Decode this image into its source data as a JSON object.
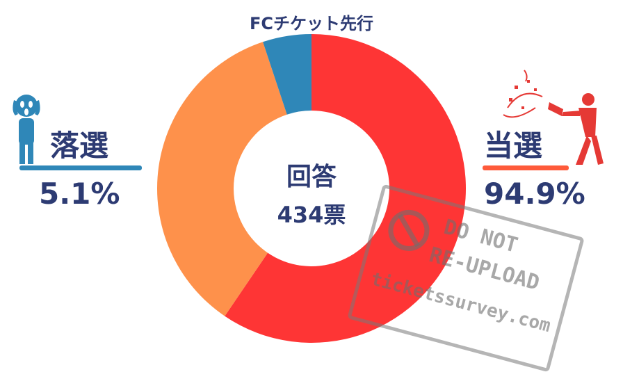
{
  "title": "FCチケット先行",
  "chart_data": {
    "type": "pie",
    "donut": true,
    "title": "FCチケット先行",
    "slices": [
      {
        "label": "当選",
        "value": 94.9,
        "color": "#fe3535"
      },
      {
        "label": "落選",
        "value": 5.1,
        "color": "#2f87b8"
      }
    ],
    "display_slices": [
      {
        "value": 59.5,
        "color": "#fe3535"
      },
      {
        "value": 35.4,
        "color": "#fe914b"
      },
      {
        "value": 5.1,
        "color": "#2f87b8"
      }
    ],
    "center": {
      "line1": "回答",
      "line2": "434票"
    }
  },
  "left": {
    "label": "落選",
    "percent": "5.1%",
    "bar_color": "#2f87b8",
    "icon": "scream-person-icon"
  },
  "right": {
    "label": "当選",
    "percent": "94.9%",
    "bar_color": "#fe5a3a",
    "icon": "party-popper-person-icon"
  },
  "watermark": {
    "line1": "DO NOT",
    "line2": "RE-UPLOAD",
    "line3": "ticketssurvey.com",
    "icon": "prohibited-icon"
  }
}
